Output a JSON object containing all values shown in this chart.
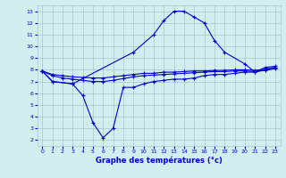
{
  "xlabel": "Graphe des températures (°c)",
  "bg_color": "#d4eef0",
  "grid_color": "#a0c8d0",
  "line_color": "#0000cc",
  "series": {
    "top": {
      "x": [
        0,
        1,
        3,
        9,
        11,
        12,
        13,
        14,
        15,
        16,
        17,
        18,
        20,
        21,
        22,
        23
      ],
      "y": [
        7.9,
        7.0,
        6.8,
        9.5,
        11.0,
        12.2,
        13.0,
        13.0,
        12.5,
        12.0,
        10.5,
        9.5,
        8.5,
        7.8,
        8.2,
        8.3
      ]
    },
    "bottom": {
      "x": [
        0,
        1,
        3,
        4,
        5,
        6,
        7,
        8,
        9,
        10,
        11,
        12,
        13,
        14,
        15,
        16,
        17,
        18,
        19,
        20,
        21,
        22,
        23
      ],
      "y": [
        7.9,
        7.0,
        6.8,
        5.8,
        3.5,
        2.2,
        3.0,
        6.5,
        6.5,
        6.8,
        7.0,
        7.1,
        7.2,
        7.2,
        7.3,
        7.5,
        7.6,
        7.6,
        7.7,
        7.8,
        7.8,
        8.0,
        8.2
      ]
    },
    "mean1": {
      "x": [
        0,
        1,
        2,
        3,
        4,
        5,
        6,
        7,
        8,
        9,
        10,
        11,
        12,
        13,
        14,
        15,
        16,
        17,
        18,
        19,
        20,
        21,
        22,
        23
      ],
      "y": [
        7.9,
        7.6,
        7.5,
        7.4,
        7.35,
        7.3,
        7.3,
        7.4,
        7.5,
        7.6,
        7.7,
        7.7,
        7.8,
        7.8,
        7.85,
        7.9,
        7.9,
        7.95,
        7.95,
        8.0,
        8.0,
        7.95,
        8.05,
        8.2
      ]
    },
    "mean2": {
      "x": [
        0,
        1,
        2,
        3,
        4,
        5,
        6,
        7,
        8,
        9,
        10,
        11,
        12,
        13,
        14,
        15,
        16,
        17,
        18,
        19,
        20,
        21,
        22,
        23
      ],
      "y": [
        7.9,
        7.5,
        7.3,
        7.2,
        7.1,
        7.0,
        7.0,
        7.1,
        7.25,
        7.4,
        7.5,
        7.55,
        7.6,
        7.65,
        7.7,
        7.75,
        7.8,
        7.85,
        7.85,
        7.9,
        7.9,
        7.85,
        7.95,
        8.1
      ]
    }
  },
  "xlim": [
    -0.5,
    23.5
  ],
  "ylim": [
    1.5,
    13.5
  ],
  "yticks": [
    2,
    3,
    4,
    5,
    6,
    7,
    8,
    9,
    10,
    11,
    12,
    13
  ],
  "xticks": [
    0,
    1,
    2,
    3,
    4,
    5,
    6,
    7,
    8,
    9,
    10,
    11,
    12,
    13,
    14,
    15,
    16,
    17,
    18,
    19,
    20,
    21,
    22,
    23
  ]
}
